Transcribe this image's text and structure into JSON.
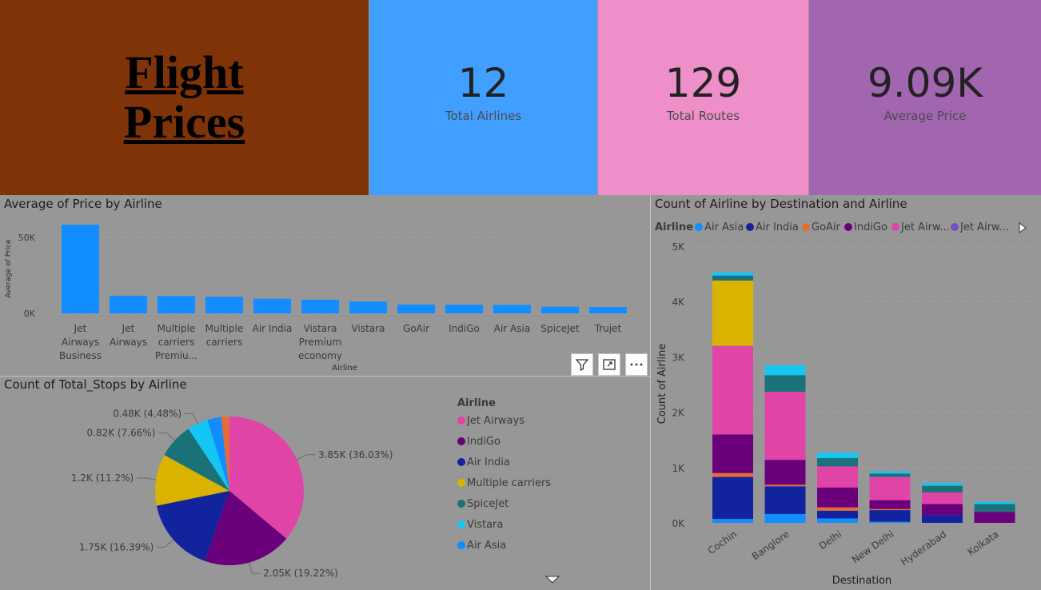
{
  "header": {
    "title": "Flight\nPrices",
    "kpis": [
      {
        "value": "12",
        "label": "Total Airlines"
      },
      {
        "value": "129",
        "label": "Total Routes"
      },
      {
        "value": "9.09K",
        "label": "Average Price"
      }
    ]
  },
  "colors": {
    "title_bg": "#7e3308",
    "kpi1_bg": "#41a0ff",
    "kpi2_bg": "#ee8fca",
    "kpi3_bg": "#a265b0",
    "canvas": "#979797",
    "bar": "#118dff",
    "airline": {
      "Air Asia": "#118dff",
      "Air India": "#12239e",
      "GoAir": "#e66c37",
      "IndiGo": "#6b007b",
      "Jet Airways": "#e044a7",
      "Jet Airways Business": "#744ec2",
      "Multiple carriers": "#d9b300",
      "SpiceJet": "#197278",
      "Vistara": "#15c6f4"
    }
  },
  "visual_icons": [
    "filter-icon",
    "focus-mode-icon",
    "more-options-icon"
  ],
  "chart_data": [
    {
      "type": "bar",
      "title": "Average of Price by Airline",
      "xlabel": "Airline",
      "ylabel": "Average of Price",
      "categories": [
        "Jet Airways Business",
        "Jet Airways",
        "Multiple carriers Premiu...",
        "Multiple carriers",
        "Air India",
        "Vistara Premium economy",
        "Vistara",
        "GoAir",
        "IndiGo",
        "Air Asia",
        "SpiceJet",
        "Trujet"
      ],
      "values": [
        58359,
        11643,
        11419,
        10903,
        9612,
        8962,
        7796,
        5861,
        5674,
        5590,
        4338,
        4140
      ],
      "yticks": [
        "50K",
        "0K"
      ],
      "ylim": [
        0,
        60000
      ],
      "grid": true
    },
    {
      "type": "pie",
      "title": "Count of Total_Stops by Airline",
      "legend_title": "Airline",
      "legend_position": "right",
      "slices": [
        {
          "name": "Jet Airways",
          "value": 36.03,
          "label": "3.85K (36.03%)",
          "color": "#e044a7"
        },
        {
          "name": "IndiGo",
          "value": 19.22,
          "label": "2.05K (19.22%)",
          "color": "#6b007b"
        },
        {
          "name": "Air India",
          "value": 16.39,
          "label": "1.75K (16.39%)",
          "color": "#12239e"
        },
        {
          "name": "Multiple carriers",
          "value": 11.2,
          "label": "1.2K (11.2%)",
          "color": "#d9b300"
        },
        {
          "name": "SpiceJet",
          "value": 7.66,
          "label": "0.82K (7.66%)",
          "color": "#197278"
        },
        {
          "name": "Vistara",
          "value": 4.48,
          "label": "0.48K (4.48%)",
          "color": "#15c6f4"
        },
        {
          "name": "Air Asia",
          "value": 3.0,
          "label": "",
          "color": "#118dff"
        },
        {
          "name": "GoAir",
          "value": 1.8,
          "label": "",
          "color": "#e66c37"
        }
      ],
      "legend_entries": [
        "Jet Airways",
        "IndiGo",
        "Air India",
        "Multiple carriers",
        "SpiceJet",
        "Vistara",
        "Air Asia"
      ]
    },
    {
      "type": "bar",
      "stacked": true,
      "title": "Count of Airline by Destination and Airline",
      "xlabel": "Destination",
      "ylabel": "Count of Airline",
      "legend_title": "Airline",
      "legend_position": "top",
      "legend_entries": [
        "Air Asia",
        "Air India",
        "GoAir",
        "IndiGo",
        "Jet Airw...",
        "Jet Airw..."
      ],
      "categories": [
        "Cochin",
        "Banglore",
        "Delhi",
        "New Delhi",
        "Hyderabad",
        "Kolkata"
      ],
      "yticks": [
        "5K",
        "4K",
        "3K",
        "2K",
        "1K",
        "0K"
      ],
      "ylim": [
        0,
        5000
      ],
      "grid": true,
      "series": [
        {
          "name": "Air Asia",
          "values": [
            70,
            160,
            80,
            20,
            0,
            0
          ]
        },
        {
          "name": "Air India",
          "values": [
            760,
            500,
            140,
            210,
            140,
            0
          ]
        },
        {
          "name": "GoAir",
          "values": [
            70,
            30,
            60,
            20,
            0,
            0
          ]
        },
        {
          "name": "IndiGo",
          "values": [
            700,
            450,
            360,
            160,
            200,
            200
          ]
        },
        {
          "name": "Jet Airways",
          "values": [
            1600,
            1230,
            380,
            420,
            210,
            0
          ]
        },
        {
          "name": "Multiple carriers",
          "values": [
            1180,
            0,
            0,
            0,
            0,
            0
          ]
        },
        {
          "name": "SpiceJet",
          "values": [
            90,
            300,
            150,
            60,
            120,
            140
          ]
        },
        {
          "name": "Vistara",
          "values": [
            60,
            180,
            100,
            40,
            50,
            40
          ]
        }
      ]
    }
  ]
}
